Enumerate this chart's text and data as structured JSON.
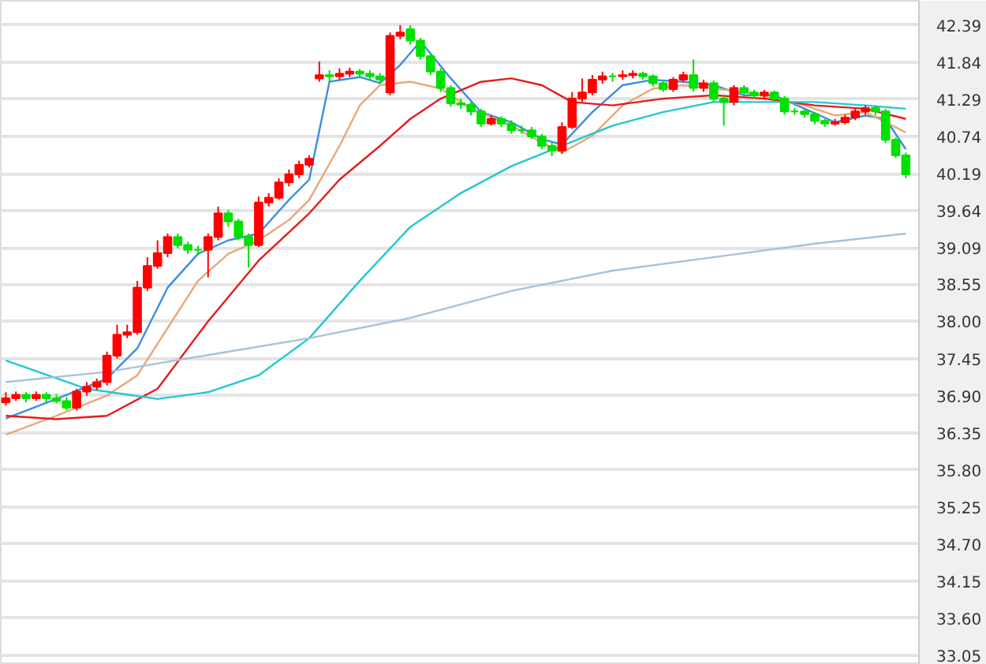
{
  "chart_data": {
    "type": "candlestick",
    "categories": [
      null,
      null,
      null,
      null,
      null,
      null,
      null,
      null,
      null,
      null,
      null,
      null,
      null,
      null,
      null,
      null,
      null,
      null,
      null,
      null,
      null,
      null,
      null,
      null,
      null,
      null,
      null,
      null,
      null,
      null,
      null,
      null,
      null,
      null,
      null,
      null,
      null,
      null,
      null,
      null,
      null,
      null,
      null,
      null,
      null,
      null,
      null,
      null,
      null,
      null,
      null,
      null,
      null,
      null,
      null,
      null,
      null,
      null,
      null,
      null,
      null,
      null,
      null,
      null,
      null,
      null,
      null,
      null,
      null,
      null,
      null,
      null,
      null,
      null,
      null,
      null,
      null,
      null,
      null,
      null,
      null,
      null,
      null,
      null,
      null,
      null,
      null,
      null,
      null,
      null
    ],
    "ohlc": [
      [
        36.8,
        36.95,
        36.75,
        36.86
      ],
      [
        36.86,
        36.96,
        36.82,
        36.91
      ],
      [
        36.91,
        36.95,
        36.8,
        36.86
      ],
      [
        36.86,
        36.96,
        36.82,
        36.91
      ],
      [
        36.91,
        36.95,
        36.8,
        36.86
      ],
      [
        36.86,
        36.92,
        36.78,
        36.82
      ],
      [
        36.82,
        36.88,
        36.68,
        36.72
      ],
      [
        36.72,
        37.0,
        36.68,
        36.96
      ],
      [
        36.96,
        37.1,
        36.9,
        37.03
      ],
      [
        37.03,
        37.15,
        36.98,
        37.1
      ],
      [
        37.1,
        37.55,
        37.05,
        37.49
      ],
      [
        37.49,
        37.95,
        37.45,
        37.8
      ],
      [
        37.8,
        37.95,
        37.75,
        37.84
      ],
      [
        37.84,
        38.6,
        37.8,
        38.5
      ],
      [
        38.5,
        38.95,
        38.45,
        38.82
      ],
      [
        38.82,
        39.2,
        38.78,
        39.01
      ],
      [
        39.01,
        39.3,
        38.95,
        39.25
      ],
      [
        39.25,
        39.3,
        39.08,
        39.13
      ],
      [
        39.13,
        39.18,
        39.0,
        39.06
      ],
      [
        39.06,
        39.12,
        38.98,
        39.06
      ],
      [
        39.06,
        39.3,
        38.65,
        39.25
      ],
      [
        39.25,
        39.7,
        39.2,
        39.6
      ],
      [
        39.6,
        39.65,
        39.4,
        39.48
      ],
      [
        39.48,
        39.52,
        39.2,
        39.25
      ],
      [
        39.25,
        39.3,
        38.8,
        39.13
      ],
      [
        39.13,
        39.85,
        39.1,
        39.76
      ],
      [
        39.76,
        39.9,
        39.7,
        39.83
      ],
      [
        39.83,
        40.12,
        39.8,
        40.06
      ],
      [
        40.06,
        40.25,
        40.0,
        40.18
      ],
      [
        40.18,
        40.38,
        40.12,
        40.32
      ],
      [
        40.32,
        40.46,
        40.28,
        40.41
      ],
      [
        41.6,
        41.85,
        41.55,
        41.65
      ],
      [
        41.65,
        41.72,
        41.55,
        41.63
      ],
      [
        41.63,
        41.75,
        41.58,
        41.67
      ],
      [
        41.67,
        41.76,
        41.62,
        41.7
      ],
      [
        41.7,
        41.74,
        41.6,
        41.67
      ],
      [
        41.67,
        41.72,
        41.58,
        41.63
      ],
      [
        41.63,
        41.68,
        41.52,
        41.58
      ],
      [
        41.39,
        42.28,
        41.35,
        42.23
      ],
      [
        42.23,
        42.39,
        42.18,
        42.28
      ],
      [
        42.33,
        42.39,
        42.1,
        42.16
      ],
      [
        42.16,
        42.2,
        41.88,
        41.93
      ],
      [
        41.93,
        41.98,
        41.65,
        41.7
      ],
      [
        41.7,
        41.75,
        41.4,
        41.46
      ],
      [
        41.46,
        41.5,
        41.18,
        41.23
      ],
      [
        41.23,
        41.3,
        41.15,
        41.21
      ],
      [
        41.21,
        41.26,
        41.05,
        41.11
      ],
      [
        41.11,
        41.15,
        40.88,
        40.93
      ],
      [
        40.93,
        41.05,
        40.9,
        41.0
      ],
      [
        41.0,
        41.04,
        40.88,
        40.93
      ],
      [
        40.93,
        40.98,
        40.78,
        40.83
      ],
      [
        40.83,
        40.9,
        40.78,
        40.83
      ],
      [
        40.83,
        40.88,
        40.7,
        40.74
      ],
      [
        40.74,
        40.78,
        40.55,
        40.6
      ],
      [
        40.6,
        40.65,
        40.45,
        40.53
      ],
      [
        40.53,
        40.95,
        40.48,
        40.88
      ],
      [
        40.88,
        41.4,
        40.85,
        41.3
      ],
      [
        41.3,
        41.6,
        41.25,
        41.39
      ],
      [
        41.39,
        41.65,
        41.35,
        41.58
      ],
      [
        41.58,
        41.7,
        41.52,
        41.63
      ],
      [
        41.63,
        41.68,
        41.55,
        41.63
      ],
      [
        41.63,
        41.72,
        41.58,
        41.65
      ],
      [
        41.65,
        41.72,
        41.6,
        41.67
      ],
      [
        41.67,
        41.7,
        41.58,
        41.63
      ],
      [
        41.63,
        41.66,
        41.48,
        41.53
      ],
      [
        41.53,
        41.58,
        41.4,
        41.44
      ],
      [
        41.44,
        41.62,
        41.4,
        41.58
      ],
      [
        41.58,
        41.7,
        41.54,
        41.65
      ],
      [
        41.65,
        41.88,
        41.4,
        41.46
      ],
      [
        41.46,
        41.58,
        41.4,
        41.53
      ],
      [
        41.53,
        41.57,
        41.25,
        41.3
      ],
      [
        41.3,
        41.34,
        40.9,
        41.25
      ],
      [
        41.25,
        41.5,
        41.2,
        41.46
      ],
      [
        41.46,
        41.5,
        41.34,
        41.39
      ],
      [
        41.39,
        41.43,
        41.3,
        41.35
      ],
      [
        41.35,
        41.43,
        41.3,
        41.39
      ],
      [
        41.39,
        41.42,
        41.25,
        41.3
      ],
      [
        41.3,
        41.34,
        41.06,
        41.11
      ],
      [
        41.11,
        41.16,
        41.06,
        41.11
      ],
      [
        41.11,
        41.14,
        41.02,
        41.07
      ],
      [
        41.07,
        41.1,
        40.92,
        40.97
      ],
      [
        40.97,
        41.0,
        40.88,
        40.93
      ],
      [
        40.93,
        41.0,
        40.9,
        40.95
      ],
      [
        40.95,
        41.06,
        40.92,
        41.02
      ],
      [
        41.02,
        41.15,
        40.98,
        41.11
      ],
      [
        41.11,
        41.2,
        41.06,
        41.16
      ],
      [
        41.16,
        41.2,
        41.05,
        41.11
      ],
      [
        41.11,
        41.15,
        40.64,
        40.69
      ],
      [
        40.69,
        40.72,
        40.42,
        40.46
      ],
      [
        40.46,
        40.5,
        40.12,
        40.18
      ]
    ],
    "colors": [
      "#ff0000",
      "#ff0000",
      "#00e000",
      "#ff0000",
      "#00e000",
      "#00e000",
      "#00e000",
      "#ff0000",
      "#ff0000",
      "#ff0000",
      "#ff0000",
      "#ff0000",
      "#ff0000",
      "#ff0000",
      "#ff0000",
      "#ff0000",
      "#ff0000",
      "#00e000",
      "#00e000",
      "#00e000",
      "#ff0000",
      "#ff0000",
      "#00e000",
      "#00e000",
      "#00e000",
      "#ff0000",
      "#ff0000",
      "#ff0000",
      "#ff0000",
      "#ff0000",
      "#ff0000",
      "#ff0000",
      "#00e000",
      "#ff0000",
      "#ff0000",
      "#00e000",
      "#00e000",
      "#00e000",
      "#ff0000",
      "#ff0000",
      "#00e000",
      "#00e000",
      "#00e000",
      "#00e000",
      "#00e000",
      "#00e000",
      "#00e000",
      "#00e000",
      "#ff0000",
      "#00e000",
      "#00e000",
      "#00e000",
      "#00e000",
      "#00e000",
      "#00e000",
      "#ff0000",
      "#ff0000",
      "#ff0000",
      "#ff0000",
      "#ff0000",
      "#00e000",
      "#ff0000",
      "#ff0000",
      "#00e000",
      "#00e000",
      "#00e000",
      "#ff0000",
      "#ff0000",
      "#00e000",
      "#ff0000",
      "#00e000",
      "#00e000",
      "#ff0000",
      "#00e000",
      "#00e000",
      "#ff0000",
      "#00e000",
      "#00e000",
      "#00e000",
      "#00e000",
      "#00e000",
      "#00e000",
      "#ff0000",
      "#ff0000",
      "#ff0000",
      "#ff0000",
      "#00e000",
      "#00e000",
      "#00e000",
      "#00e000"
    ],
    "series": [
      {
        "type": "line",
        "color": "#3a8ee6",
        "values": [
          36.56,
          null,
          null,
          null,
          null,
          36.85,
          null,
          null,
          null,
          null,
          37.15,
          null,
          null,
          37.6,
          null,
          null,
          38.5,
          null,
          null,
          39.0,
          null,
          null,
          39.2,
          null,
          null,
          39.3,
          null,
          null,
          39.8,
          null,
          40.1,
          null,
          41.55,
          null,
          null,
          41.62,
          null,
          41.53,
          null,
          41.8,
          null,
          42.15,
          null,
          null,
          41.6,
          null,
          null,
          41.1,
          null,
          null,
          40.95,
          null,
          null,
          40.7,
          null,
          40.62,
          null,
          null,
          41.1,
          null,
          null,
          41.5,
          null,
          null,
          41.58,
          null,
          null,
          41.55,
          null,
          null,
          41.5,
          null,
          null,
          41.35,
          null,
          null,
          41.35,
          null,
          null,
          41.15,
          null,
          null,
          40.95,
          null,
          null,
          41.05,
          null,
          41.0,
          null,
          40.55
        ]
      },
      {
        "type": "line",
        "color": "#e8a878",
        "values": [
          36.32,
          null,
          null,
          null,
          null,
          36.6,
          null,
          null,
          null,
          null,
          36.9,
          null,
          null,
          37.2,
          null,
          null,
          37.9,
          null,
          null,
          38.6,
          null,
          null,
          39.0,
          null,
          null,
          39.2,
          null,
          null,
          39.5,
          null,
          39.8,
          null,
          null,
          40.6,
          null,
          41.2,
          null,
          41.5,
          null,
          null,
          41.55,
          null,
          null,
          41.45,
          null,
          null,
          41.15,
          null,
          null,
          null,
          40.9,
          null,
          null,
          40.65,
          null,
          40.5,
          null,
          null,
          40.75,
          null,
          null,
          41.2,
          null,
          null,
          41.45,
          null,
          null,
          41.5,
          null,
          null,
          41.45,
          null,
          null,
          41.4,
          null,
          null,
          41.3,
          null,
          null,
          41.2,
          null,
          null,
          41.05,
          null,
          null,
          41.1,
          null,
          null,
          null,
          40.8
        ]
      },
      {
        "type": "line",
        "color": "#e61c1c",
        "values": [
          36.6,
          null,
          null,
          null,
          null,
          36.55,
          null,
          null,
          null,
          null,
          36.6,
          null,
          null,
          null,
          null,
          37.0,
          null,
          null,
          null,
          null,
          38.0,
          null,
          null,
          null,
          null,
          38.9,
          null,
          null,
          null,
          null,
          39.6,
          null,
          null,
          40.1,
          null,
          null,
          null,
          40.6,
          null,
          null,
          41.0,
          null,
          null,
          41.3,
          null,
          null,
          null,
          41.55,
          null,
          null,
          41.6,
          null,
          null,
          41.5,
          null,
          null,
          41.25,
          null,
          null,
          null,
          41.2,
          null,
          null,
          null,
          null,
          41.3,
          null,
          null,
          null,
          null,
          41.35,
          null,
          null,
          null,
          null,
          41.3,
          null,
          null,
          null,
          null,
          41.2,
          null,
          null,
          null,
          null,
          41.15,
          null,
          null,
          null,
          41.0
        ]
      },
      {
        "type": "line",
        "color": "#22c8d2",
        "values": [
          37.42,
          null,
          null,
          null,
          null,
          null,
          null,
          null,
          37.0,
          null,
          null,
          null,
          null,
          null,
          null,
          36.85,
          null,
          null,
          null,
          null,
          36.95,
          null,
          null,
          null,
          null,
          37.2,
          null,
          null,
          null,
          null,
          37.75,
          null,
          null,
          null,
          null,
          38.6,
          null,
          null,
          null,
          null,
          39.4,
          null,
          null,
          null,
          null,
          39.9,
          null,
          null,
          null,
          null,
          40.3,
          null,
          null,
          null,
          null,
          40.6,
          null,
          null,
          null,
          null,
          40.9,
          null,
          null,
          null,
          null,
          41.1,
          null,
          null,
          null,
          null,
          41.25,
          null,
          null,
          null,
          null,
          41.25,
          null,
          null,
          null,
          null,
          41.25,
          null,
          null,
          null,
          null,
          41.2,
          null,
          null,
          null,
          41.15
        ]
      },
      {
        "type": "line",
        "color": "#a8c2da",
        "values": [
          37.1,
          null,
          null,
          null,
          null,
          null,
          null,
          null,
          null,
          null,
          37.25,
          null,
          null,
          null,
          null,
          null,
          null,
          null,
          null,
          null,
          37.5,
          null,
          null,
          null,
          null,
          null,
          null,
          null,
          null,
          null,
          37.75,
          null,
          null,
          null,
          null,
          null,
          null,
          null,
          null,
          null,
          38.05,
          null,
          null,
          null,
          null,
          null,
          null,
          null,
          null,
          null,
          38.45,
          null,
          null,
          null,
          null,
          null,
          null,
          null,
          null,
          null,
          38.75,
          null,
          null,
          null,
          null,
          null,
          null,
          null,
          null,
          null,
          38.95,
          null,
          null,
          null,
          null,
          null,
          null,
          null,
          null,
          null,
          39.15,
          null,
          null,
          null,
          null,
          null,
          null,
          null,
          null,
          39.3
        ]
      }
    ],
    "ylim": [
      32.91,
      42.75
    ],
    "yticks": [
      42.39,
      41.84,
      41.29,
      40.74,
      40.19,
      39.64,
      39.09,
      38.55,
      {
        "value": 38.0,
        "label": "38.00"
      },
      37.45,
      {
        "value": 36.9,
        "label": "36.90"
      },
      36.35,
      {
        "value": 35.8,
        "label": "35.80"
      },
      35.25,
      {
        "value": 34.7,
        "label": "34.70"
      },
      34.15,
      {
        "value": 33.6,
        "label": "33.60"
      },
      33.05
    ],
    "grid": "y",
    "tick_labels": "y"
  }
}
